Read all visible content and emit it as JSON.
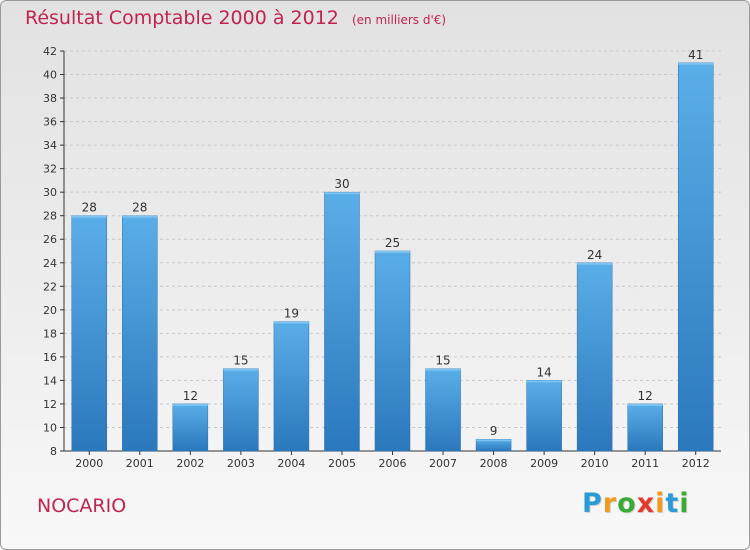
{
  "chart_data": {
    "type": "bar",
    "title": "Résultat Comptable 2000 à 2012",
    "subtitle": "(en milliers d'€)",
    "categories": [
      "2000",
      "2001",
      "2002",
      "2003",
      "2004",
      "2005",
      "2006",
      "2007",
      "2008",
      "2009",
      "2010",
      "2011",
      "2012"
    ],
    "values": [
      28,
      28,
      12,
      15,
      19,
      30,
      25,
      15,
      9,
      14,
      24,
      12,
      41
    ],
    "ylim": [
      8,
      42
    ],
    "yticks": [
      8,
      10,
      12,
      14,
      16,
      18,
      20,
      22,
      24,
      26,
      28,
      30,
      32,
      34,
      36,
      38,
      40,
      42
    ],
    "xlabel": "",
    "ylabel": "",
    "grid": true,
    "bar_color": "#3d8fd1",
    "bar_color_light": "#5aaee8"
  },
  "footer": {
    "place": "NOCARIO",
    "brand_letters": [
      {
        "ch": "P",
        "color": "#2a9bd6"
      },
      {
        "ch": "r",
        "color": "#f29a1e"
      },
      {
        "ch": "o",
        "color": "#3aaa35"
      },
      {
        "ch": "x",
        "color": "#e23b2e"
      },
      {
        "ch": "i",
        "color": "#f29a1e"
      },
      {
        "ch": "t",
        "color": "#2a9bd6"
      },
      {
        "ch": "i",
        "color": "#3aaa35"
      }
    ]
  },
  "colors": {
    "title": "#c0244e",
    "axis": "#333333",
    "grid": "#c8c8c8"
  }
}
